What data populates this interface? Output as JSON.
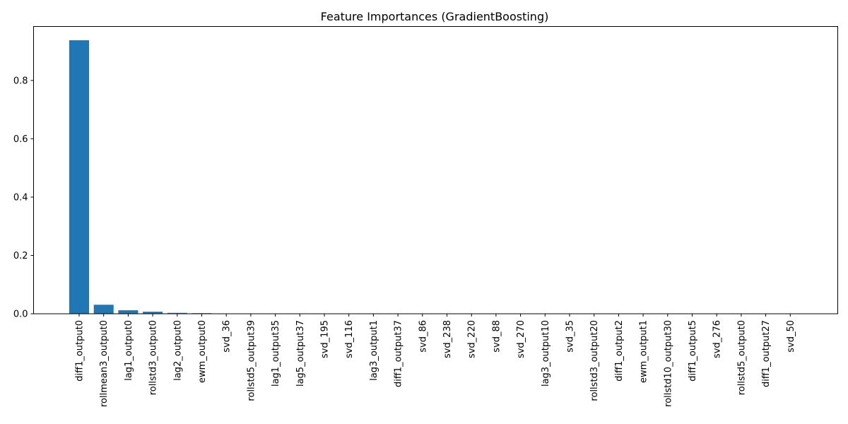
{
  "chart_data": {
    "type": "bar",
    "title": "Feature Importances (GradientBoosting)",
    "xlabel": "",
    "ylabel": "",
    "categories": [
      "diff1_output0",
      "rollmean3_output0",
      "lag1_output0",
      "rollstd3_output0",
      "lag2_output0",
      "ewm_output0",
      "svd_36",
      "rollstd5_output39",
      "lag1_output35",
      "lag5_output37",
      "svd_195",
      "svd_116",
      "lag3_output1",
      "diff1_output37",
      "svd_86",
      "svd_238",
      "svd_220",
      "svd_88",
      "svd_270",
      "lag3_output10",
      "svd_35",
      "rollstd3_output20",
      "diff1_output2",
      "ewm_output1",
      "rollstd10_output30",
      "diff1_output5",
      "svd_276",
      "rollstd5_output0",
      "diff1_output27",
      "svd_50"
    ],
    "values": [
      0.938,
      0.031,
      0.012,
      0.007,
      0.003,
      0.002,
      0.0003,
      0.0002,
      0.0002,
      0.0001,
      0.0001,
      0.0001,
      0.0001,
      0.0001,
      0.0001,
      0.0001,
      0.0001,
      0.0001,
      0.0001,
      0.0001,
      0.0001,
      0.0001,
      0.0,
      0.0,
      0.0,
      0.0,
      0.0,
      0.0,
      0.0,
      0.0
    ],
    "yticks": [
      "0.0",
      "0.2",
      "0.4",
      "0.6",
      "0.8"
    ],
    "ylim": [
      0,
      0.985
    ],
    "grid": false,
    "legend": "none",
    "bar_color": "#1f77b4"
  }
}
